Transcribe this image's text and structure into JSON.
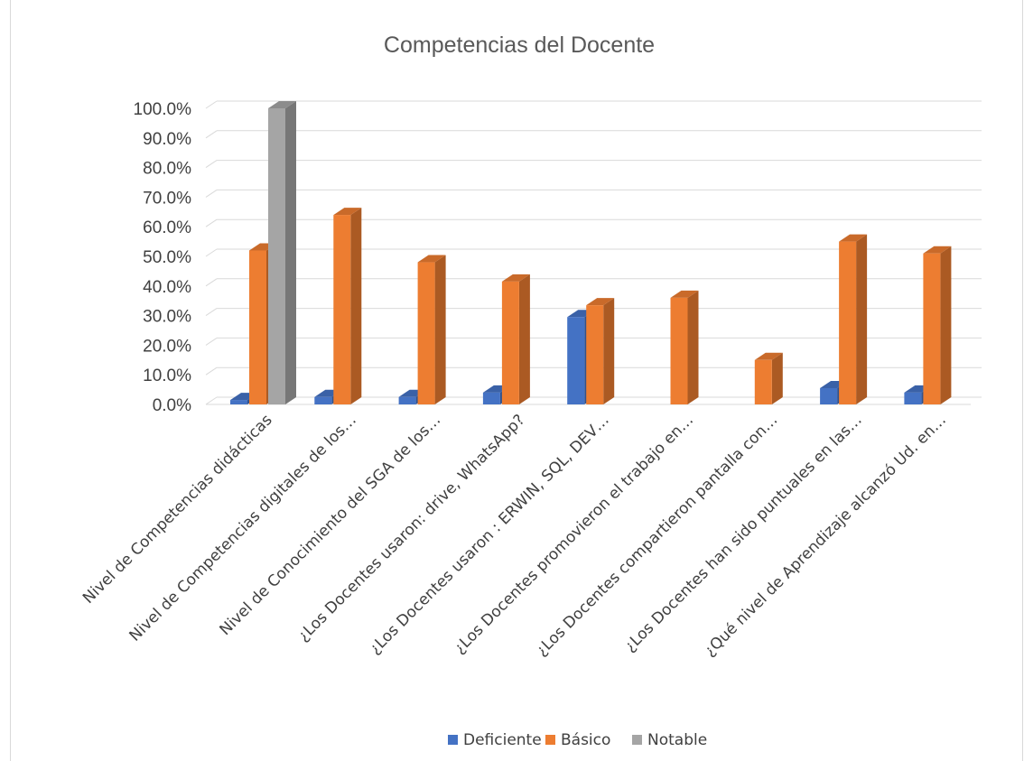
{
  "chart_data": {
    "type": "bar",
    "title": "Competencias  del Docente",
    "xlabel": "",
    "ylabel": "",
    "ylim": [
      0,
      100
    ],
    "y_ticks": [
      "0.0%",
      "10.0%",
      "20.0%",
      "30.0%",
      "40.0%",
      "50.0%",
      "60.0%",
      "70.0%",
      "80.0%",
      "90.0%",
      "100.0%"
    ],
    "grid": true,
    "legend_position": "bottom",
    "categories": [
      "Nivel de Competencias didácticas",
      "Nivel de Competencias digitales  de los…",
      "Nivel de Conocimiento del SGA de los…",
      "¿Los Docentes usaron: drive, WhatsApp?",
      "¿Los Docentes usaron : ERWIN,  SQL, DEV…",
      "¿Los Docentes promovieron el trabajo en…",
      "¿Los Docentes compartieron pantalla con…",
      "¿Los Docentes han sido puntuales en las…",
      "¿Qué nivel de Aprendizaje alcanzó Ud. en…"
    ],
    "series": [
      {
        "name": "Deficiente",
        "color": "#4472C4",
        "values": [
          1.5,
          2.5,
          2.5,
          4.0,
          29.5,
          0.0,
          0.0,
          5.5,
          4.0
        ]
      },
      {
        "name": "Básico",
        "color": "#ED7D31",
        "values": [
          52.0,
          64.0,
          48.0,
          41.5,
          33.5,
          36.0,
          15.0,
          55.0,
          51.0
        ]
      },
      {
        "name": "Notable",
        "color": "#A5A5A5",
        "values": [
          100.0,
          0,
          0,
          0,
          0,
          0,
          0,
          0,
          0
        ]
      }
    ]
  }
}
